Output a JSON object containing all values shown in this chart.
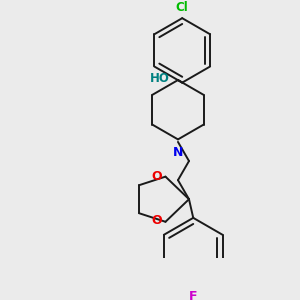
{
  "background_color": "#ebebeb",
  "bond_color": "#1a1a1a",
  "atom_colors": {
    "Cl": "#00bb00",
    "O": "#ee0000",
    "N": "#0000ee",
    "F": "#cc00cc",
    "HO": "#008080"
  },
  "lw": 1.4,
  "figsize": [
    3.0,
    3.0
  ],
  "dpi": 100
}
